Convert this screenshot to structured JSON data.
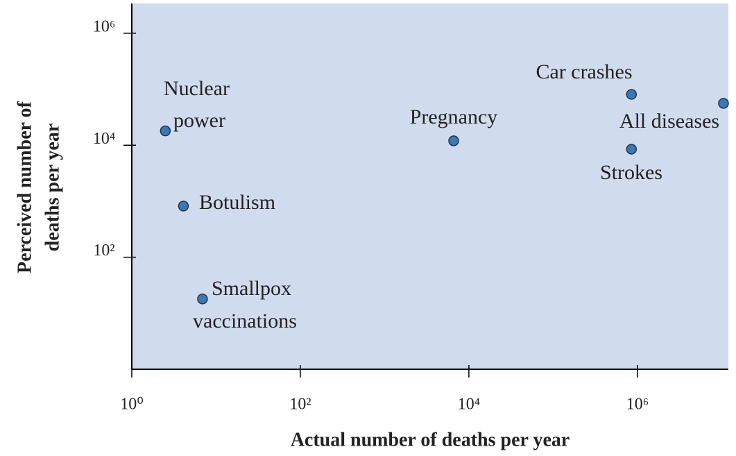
{
  "chart_data": {
    "type": "scatter",
    "x_label": "Actual number of deaths per year",
    "y_label": [
      "Perceived number of",
      "deaths per year"
    ],
    "log_x": true,
    "log_y": true,
    "xlim": [
      1,
      12000000
    ],
    "ylim": [
      1,
      3400000
    ],
    "xticks": [
      {
        "value": 1,
        "label": "10⁰"
      },
      {
        "value": 100,
        "label": "10²"
      },
      {
        "value": 10000,
        "label": "10⁴"
      },
      {
        "value": 1000000,
        "label": "10⁶"
      }
    ],
    "yticks": [
      {
        "value": 100,
        "label": "10²"
      },
      {
        "value": 10000,
        "label": "10⁴"
      },
      {
        "value": 1000000,
        "label": "10⁶"
      }
    ],
    "background": "#d0dcee",
    "series": [
      {
        "color": "#3f78b0",
        "labels": [
          [
            "Nuclear",
            "power"
          ],
          [
            "Botulism"
          ],
          [
            "Smallpox",
            "vaccinations"
          ],
          [
            "Pregnancy"
          ],
          [
            "Car crashes"
          ],
          [
            "Strokes"
          ],
          [
            "All diseases"
          ]
        ],
        "x": [
          2.5,
          4.1,
          6.9,
          6600,
          850000,
          850000,
          10500000
        ],
        "values": [
          18000,
          820,
          18,
          12000,
          81000,
          8500,
          56000
        ]
      }
    ]
  }
}
